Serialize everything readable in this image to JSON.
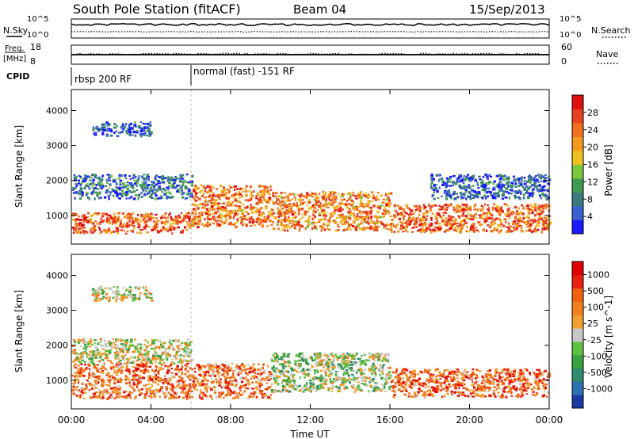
{
  "header": {
    "station": "South Pole Station (fitACF)",
    "beam": "Beam 04",
    "date": "15/Sep/2013"
  },
  "top_panels": {
    "nsky_label": "N.Sky",
    "nsky_ticks": [
      "10^5",
      "10^0"
    ],
    "nsearch_label": "N.Search",
    "nsearch_ticks": [
      "10^5",
      "10^0"
    ],
    "freq_label_1": "Freq.",
    "freq_label_2": "[MHz]",
    "freq_ticks": [
      "18",
      "8"
    ],
    "nave_label": "Nave",
    "nave_ticks": [
      "60",
      "0"
    ],
    "cpid_label": "CPID",
    "cpid_segments": [
      {
        "label": "rbsp 200 RF",
        "start_hour": 0
      },
      {
        "label": "normal (fast) -151 RF",
        "start_hour": 6
      }
    ]
  },
  "chart_data": [
    {
      "type": "heatmap",
      "quantity": "Power",
      "xlabel": "",
      "ylabel": "Slant Range [km]",
      "x_range_hours": [
        0,
        24
      ],
      "x_ticks": [
        "00:00",
        "04:00",
        "08:00",
        "12:00",
        "16:00",
        "20:00",
        "00:00"
      ],
      "ylim": [
        180,
        4600
      ],
      "y_ticks": [
        1000,
        2000,
        3000,
        4000
      ],
      "colorbar": {
        "label": "Power [dB]",
        "ticks": [
          "4",
          "8",
          "12",
          "16",
          "20",
          "24",
          "28"
        ],
        "colors": [
          "#1a1aff",
          "#3a5fd0",
          "#3c7a80",
          "#3d9a50",
          "#7cc83c",
          "#f0c020",
          "#f59a20",
          "#f07020",
          "#e84020",
          "#e01010"
        ]
      },
      "bands": [
        {
          "from_h": 0.0,
          "to_h": 6.0,
          "range_km": [
            500,
            1100
          ],
          "level": 0.78
        },
        {
          "from_h": 6.0,
          "to_h": 10.0,
          "range_km": [
            700,
            1900
          ],
          "level": 0.72
        },
        {
          "from_h": 10.0,
          "to_h": 16.0,
          "range_km": [
            600,
            1700
          ],
          "level": 0.7
        },
        {
          "from_h": 16.0,
          "to_h": 24.0,
          "range_km": [
            550,
            1350
          ],
          "level": 0.76
        },
        {
          "from_h": 0.0,
          "to_h": 6.0,
          "range_km": [
            1500,
            2200
          ],
          "level": 0.22
        },
        {
          "from_h": 1.0,
          "to_h": 4.0,
          "range_km": [
            3300,
            3700
          ],
          "level": 0.15
        },
        {
          "from_h": 18.0,
          "to_h": 24.0,
          "range_km": [
            1500,
            2200
          ],
          "level": 0.18
        }
      ]
    },
    {
      "type": "heatmap",
      "quantity": "Velocity",
      "xlabel": "Time UT",
      "ylabel": "Slant Range [km]",
      "x_range_hours": [
        0,
        24
      ],
      "x_ticks": [
        "00:00",
        "04:00",
        "08:00",
        "12:00",
        "16:00",
        "20:00",
        "00:00"
      ],
      "ylim": [
        180,
        4600
      ],
      "y_ticks": [
        1000,
        2000,
        3000,
        4000
      ],
      "colorbar": {
        "label": "Velocity [m s^-1]",
        "ticks": [
          "1000",
          "500",
          "100",
          "25",
          "-25",
          "-100",
          "-500",
          "-1000"
        ],
        "colors": [
          "#1a3aa0",
          "#2e6fb0",
          "#2f8a70",
          "#3aa040",
          "#60c040",
          "#c8c8c8",
          "#f0a030",
          "#f08020",
          "#f06010",
          "#e82010",
          "#e00000"
        ]
      },
      "bands": [
        {
          "from_h": 0.0,
          "to_h": 10.0,
          "range_km": [
            500,
            1500
          ],
          "level": 0.72
        },
        {
          "from_h": 10.0,
          "to_h": 16.0,
          "range_km": [
            700,
            1800
          ],
          "level": 0.45
        },
        {
          "from_h": 16.0,
          "to_h": 24.0,
          "range_km": [
            550,
            1350
          ],
          "level": 0.74
        },
        {
          "from_h": 0.0,
          "to_h": 6.0,
          "range_km": [
            1500,
            2200
          ],
          "level": 0.5
        },
        {
          "from_h": 1.0,
          "to_h": 4.0,
          "range_km": [
            3300,
            3700
          ],
          "level": 0.5
        }
      ]
    }
  ]
}
